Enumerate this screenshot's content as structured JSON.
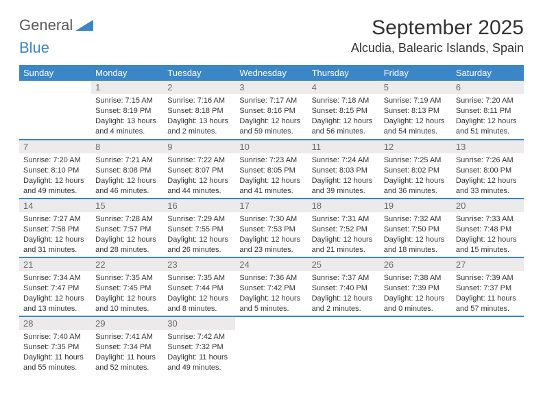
{
  "logo": {
    "part1": "General",
    "part2": "Blue"
  },
  "title": "September 2025",
  "location": "Alcudia, Balearic Islands, Spain",
  "headers": [
    "Sunday",
    "Monday",
    "Tuesday",
    "Wednesday",
    "Thursday",
    "Friday",
    "Saturday"
  ],
  "header_bg": "#3b86c7",
  "header_fg": "#ffffff",
  "daynum_bg": "#eceaea",
  "daynum_fg": "#6b6b6b",
  "row_border_color": "#3b86c7",
  "text_color": "#333333",
  "font_family": "Arial, Helvetica, sans-serif",
  "info_fontsize": 11,
  "header_fontsize": 13,
  "title_fontsize": 30,
  "location_fontsize": 18,
  "weeks": [
    [
      null,
      {
        "n": "1",
        "sr": "7:15 AM",
        "ss": "8:19 PM",
        "dl": "13 hours and 4 minutes."
      },
      {
        "n": "2",
        "sr": "7:16 AM",
        "ss": "8:18 PM",
        "dl": "13 hours and 2 minutes."
      },
      {
        "n": "3",
        "sr": "7:17 AM",
        "ss": "8:16 PM",
        "dl": "12 hours and 59 minutes."
      },
      {
        "n": "4",
        "sr": "7:18 AM",
        "ss": "8:15 PM",
        "dl": "12 hours and 56 minutes."
      },
      {
        "n": "5",
        "sr": "7:19 AM",
        "ss": "8:13 PM",
        "dl": "12 hours and 54 minutes."
      },
      {
        "n": "6",
        "sr": "7:20 AM",
        "ss": "8:11 PM",
        "dl": "12 hours and 51 minutes."
      }
    ],
    [
      {
        "n": "7",
        "sr": "7:20 AM",
        "ss": "8:10 PM",
        "dl": "12 hours and 49 minutes."
      },
      {
        "n": "8",
        "sr": "7:21 AM",
        "ss": "8:08 PM",
        "dl": "12 hours and 46 minutes."
      },
      {
        "n": "9",
        "sr": "7:22 AM",
        "ss": "8:07 PM",
        "dl": "12 hours and 44 minutes."
      },
      {
        "n": "10",
        "sr": "7:23 AM",
        "ss": "8:05 PM",
        "dl": "12 hours and 41 minutes."
      },
      {
        "n": "11",
        "sr": "7:24 AM",
        "ss": "8:03 PM",
        "dl": "12 hours and 39 minutes."
      },
      {
        "n": "12",
        "sr": "7:25 AM",
        "ss": "8:02 PM",
        "dl": "12 hours and 36 minutes."
      },
      {
        "n": "13",
        "sr": "7:26 AM",
        "ss": "8:00 PM",
        "dl": "12 hours and 33 minutes."
      }
    ],
    [
      {
        "n": "14",
        "sr": "7:27 AM",
        "ss": "7:58 PM",
        "dl": "12 hours and 31 minutes."
      },
      {
        "n": "15",
        "sr": "7:28 AM",
        "ss": "7:57 PM",
        "dl": "12 hours and 28 minutes."
      },
      {
        "n": "16",
        "sr": "7:29 AM",
        "ss": "7:55 PM",
        "dl": "12 hours and 26 minutes."
      },
      {
        "n": "17",
        "sr": "7:30 AM",
        "ss": "7:53 PM",
        "dl": "12 hours and 23 minutes."
      },
      {
        "n": "18",
        "sr": "7:31 AM",
        "ss": "7:52 PM",
        "dl": "12 hours and 21 minutes."
      },
      {
        "n": "19",
        "sr": "7:32 AM",
        "ss": "7:50 PM",
        "dl": "12 hours and 18 minutes."
      },
      {
        "n": "20",
        "sr": "7:33 AM",
        "ss": "7:48 PM",
        "dl": "12 hours and 15 minutes."
      }
    ],
    [
      {
        "n": "21",
        "sr": "7:34 AM",
        "ss": "7:47 PM",
        "dl": "12 hours and 13 minutes."
      },
      {
        "n": "22",
        "sr": "7:35 AM",
        "ss": "7:45 PM",
        "dl": "12 hours and 10 minutes."
      },
      {
        "n": "23",
        "sr": "7:35 AM",
        "ss": "7:44 PM",
        "dl": "12 hours and 8 minutes."
      },
      {
        "n": "24",
        "sr": "7:36 AM",
        "ss": "7:42 PM",
        "dl": "12 hours and 5 minutes."
      },
      {
        "n": "25",
        "sr": "7:37 AM",
        "ss": "7:40 PM",
        "dl": "12 hours and 2 minutes."
      },
      {
        "n": "26",
        "sr": "7:38 AM",
        "ss": "7:39 PM",
        "dl": "12 hours and 0 minutes."
      },
      {
        "n": "27",
        "sr": "7:39 AM",
        "ss": "7:37 PM",
        "dl": "11 hours and 57 minutes."
      }
    ],
    [
      {
        "n": "28",
        "sr": "7:40 AM",
        "ss": "7:35 PM",
        "dl": "11 hours and 55 minutes."
      },
      {
        "n": "29",
        "sr": "7:41 AM",
        "ss": "7:34 PM",
        "dl": "11 hours and 52 minutes."
      },
      {
        "n": "30",
        "sr": "7:42 AM",
        "ss": "7:32 PM",
        "dl": "11 hours and 49 minutes."
      },
      null,
      null,
      null,
      null
    ]
  ],
  "labels": {
    "sunrise": "Sunrise:",
    "sunset": "Sunset:",
    "daylight": "Daylight:"
  }
}
